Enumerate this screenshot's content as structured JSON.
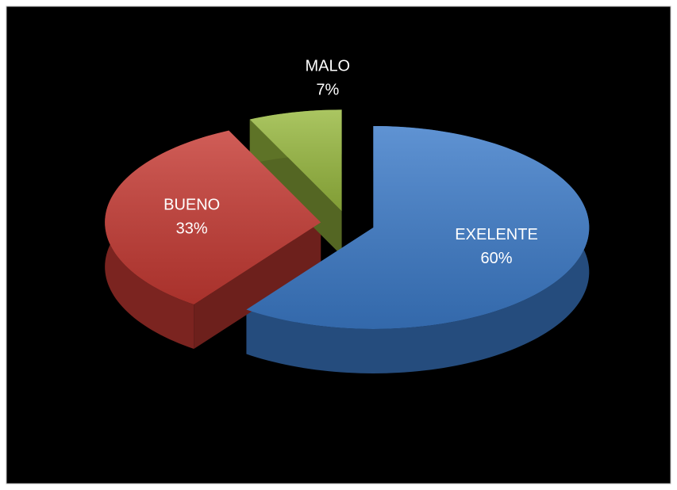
{
  "chart_data": {
    "type": "pie",
    "categories": [
      "EXELENTE",
      "BUENO",
      "MALO"
    ],
    "values": [
      60,
      33,
      7
    ],
    "value_labels": [
      "60%",
      "33%",
      "7%"
    ],
    "colors": [
      "#3c7bc9",
      "#c63a33",
      "#98b93f"
    ]
  }
}
